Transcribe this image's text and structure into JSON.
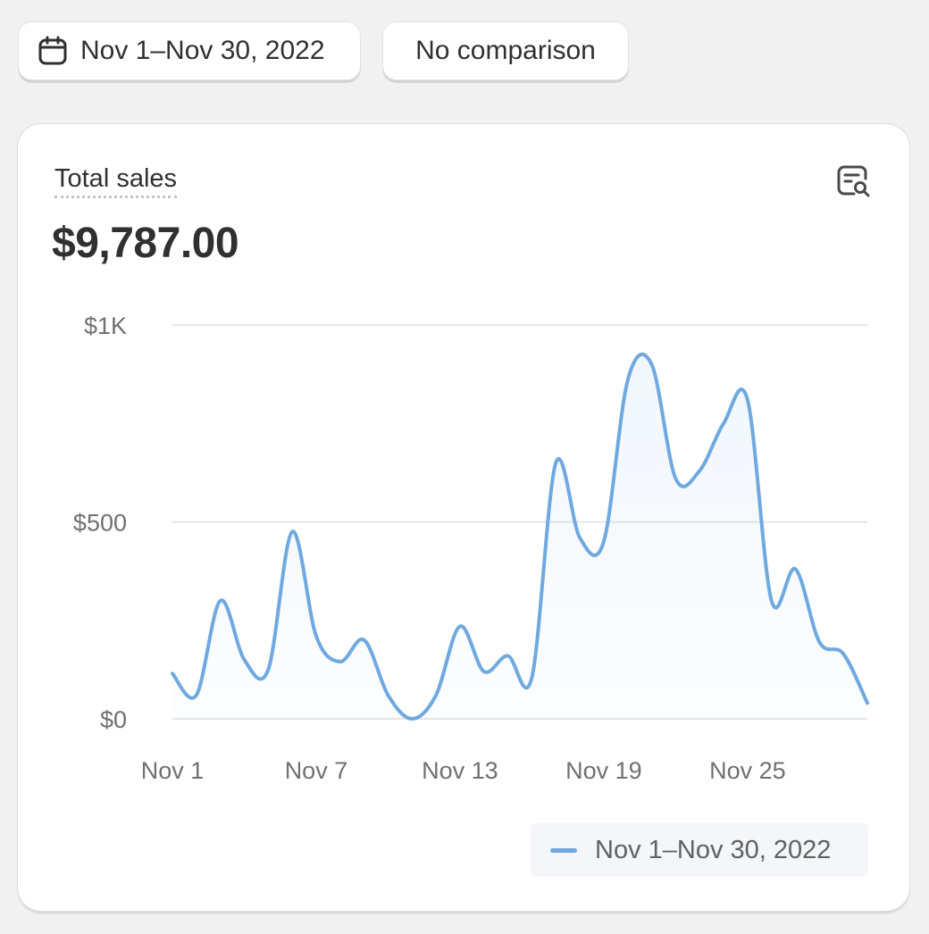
{
  "toolbar": {
    "date_range_label": "Nov 1–Nov 30, 2022",
    "comparison_label": "No comparison",
    "date_icon": "calendar-icon"
  },
  "card": {
    "metric_title": "Total sales",
    "metric_value": "$9,787.00",
    "explore_icon": "explore-report-icon"
  },
  "colors": {
    "line": "#6fa9df",
    "grid": "#e6e6e6",
    "axis_text": "#707070"
  },
  "chart_data": {
    "type": "line",
    "title": "Total sales",
    "x": [
      "Nov 1",
      "Nov 2",
      "Nov 3",
      "Nov 4",
      "Nov 5",
      "Nov 6",
      "Nov 7",
      "Nov 8",
      "Nov 9",
      "Nov 10",
      "Nov 11",
      "Nov 12",
      "Nov 13",
      "Nov 14",
      "Nov 15",
      "Nov 16",
      "Nov 17",
      "Nov 18",
      "Nov 19",
      "Nov 20",
      "Nov 21",
      "Nov 22",
      "Nov 23",
      "Nov 24",
      "Nov 25",
      "Nov 26",
      "Nov 27",
      "Nov 28",
      "Nov 29",
      "Nov 30"
    ],
    "x_tick_labels": [
      "Nov 1",
      "Nov 7",
      "Nov 13",
      "Nov 19",
      "Nov 25"
    ],
    "y_tick_labels": [
      "$0",
      "$500",
      "$1K"
    ],
    "ylim": [
      0,
      1000
    ],
    "grid": true,
    "legend_position": "bottom-right",
    "series": [
      {
        "name": "Nov 1–Nov 30, 2022",
        "values": [
          115,
          60,
          300,
          150,
          125,
          475,
          210,
          145,
          200,
          60,
          0,
          60,
          235,
          120,
          160,
          105,
          650,
          460,
          450,
          860,
          900,
          610,
          630,
          750,
          810,
          300,
          380,
          195,
          165,
          40
        ]
      }
    ]
  }
}
